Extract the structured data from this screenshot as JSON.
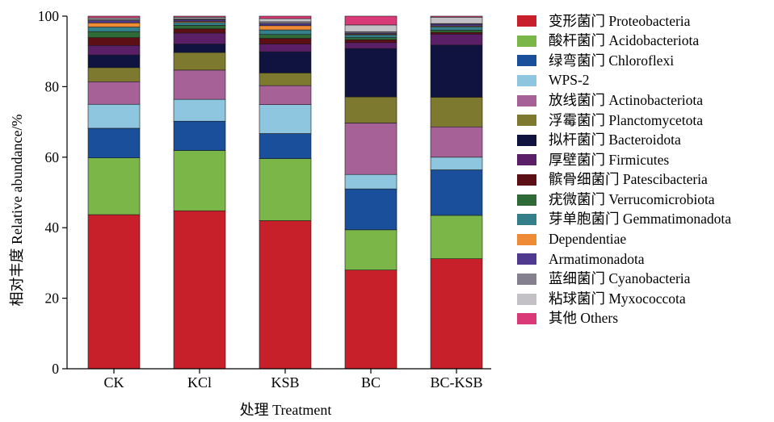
{
  "chart_data": {
    "type": "bar",
    "stacked": true,
    "xlabel": "处理 Treatment",
    "ylabel": "相对丰度 Relative abundance/%",
    "ylim": [
      0,
      100
    ],
    "yticks": [
      "0",
      "20",
      "40",
      "60",
      "80",
      "100"
    ],
    "categories": [
      "CK",
      "KCl",
      "KSB",
      "BC",
      "BC-KSB"
    ],
    "legend_position": "right",
    "series": [
      {
        "name": "变形菌门 Proteobacteria",
        "color": "#c8202a",
        "values": [
          43.7,
          44.8,
          42.0,
          28.0,
          31.2
        ]
      },
      {
        "name": "酸杆菌门 Acidobacteriota",
        "color": "#7ab648",
        "values": [
          16.1,
          17.1,
          17.6,
          11.4,
          12.3
        ]
      },
      {
        "name": "绿弯菌门 Chloroflexi",
        "color": "#1a4f9c",
        "values": [
          8.4,
          8.3,
          7.1,
          11.6,
          12.9
        ]
      },
      {
        "name": "WPS-2",
        "color": "#8ec5df",
        "values": [
          6.8,
          6.2,
          8.2,
          4.1,
          3.6
        ]
      },
      {
        "name": "放线菌门 Actinobacteriota",
        "color": "#a66197",
        "values": [
          6.4,
          8.3,
          5.4,
          14.6,
          8.6
        ]
      },
      {
        "name": "浮霉菌门 Planctomycetota",
        "color": "#7d7a2f",
        "values": [
          4.0,
          5.0,
          3.6,
          7.4,
          8.4
        ]
      },
      {
        "name": "拟杆菌门 Bacteroidota",
        "color": "#10123f",
        "values": [
          3.6,
          2.4,
          6.0,
          13.7,
          14.8
        ]
      },
      {
        "name": "厚壁菌门 Firmicutes",
        "color": "#5a1f66",
        "values": [
          2.7,
          3.1,
          2.2,
          1.7,
          3.1
        ]
      },
      {
        "name": "髌骨细菌门 Patescibacteria",
        "color": "#5c0f14",
        "values": [
          2.2,
          1.2,
          1.6,
          0.8,
          0.5
        ]
      },
      {
        "name": "疣微菌门 Verrucomicrobiota",
        "color": "#2f6b36",
        "values": [
          1.7,
          1.0,
          1.1,
          0.6,
          0.6
        ]
      },
      {
        "name": "芽单胞菌门 Gemmatimonadota",
        "color": "#357f8a",
        "values": [
          1.3,
          0.8,
          1.3,
          0.8,
          1.0
        ]
      },
      {
        "name": "Dependentiae",
        "color": "#ef8a35",
        "values": [
          1.2,
          0.3,
          1.2,
          0.2,
          0.2
        ]
      },
      {
        "name": "Armatimonadota",
        "color": "#4f3a8f",
        "values": [
          0.6,
          0.5,
          0.6,
          0.3,
          0.5
        ]
      },
      {
        "name": "蓝细菌门 Cyanobacteria",
        "color": "#85808d",
        "values": [
          0.4,
          0.3,
          0.5,
          0.4,
          0.2
        ]
      },
      {
        "name": "粘球菌门 Myxococcota",
        "color": "#c3c1c6",
        "values": [
          0.4,
          0.4,
          0.9,
          1.9,
          1.8
        ]
      },
      {
        "name": "其他 Others",
        "color": "#d93a77",
        "values": [
          0.5,
          0.3,
          0.7,
          2.5,
          0.3
        ]
      }
    ]
  }
}
